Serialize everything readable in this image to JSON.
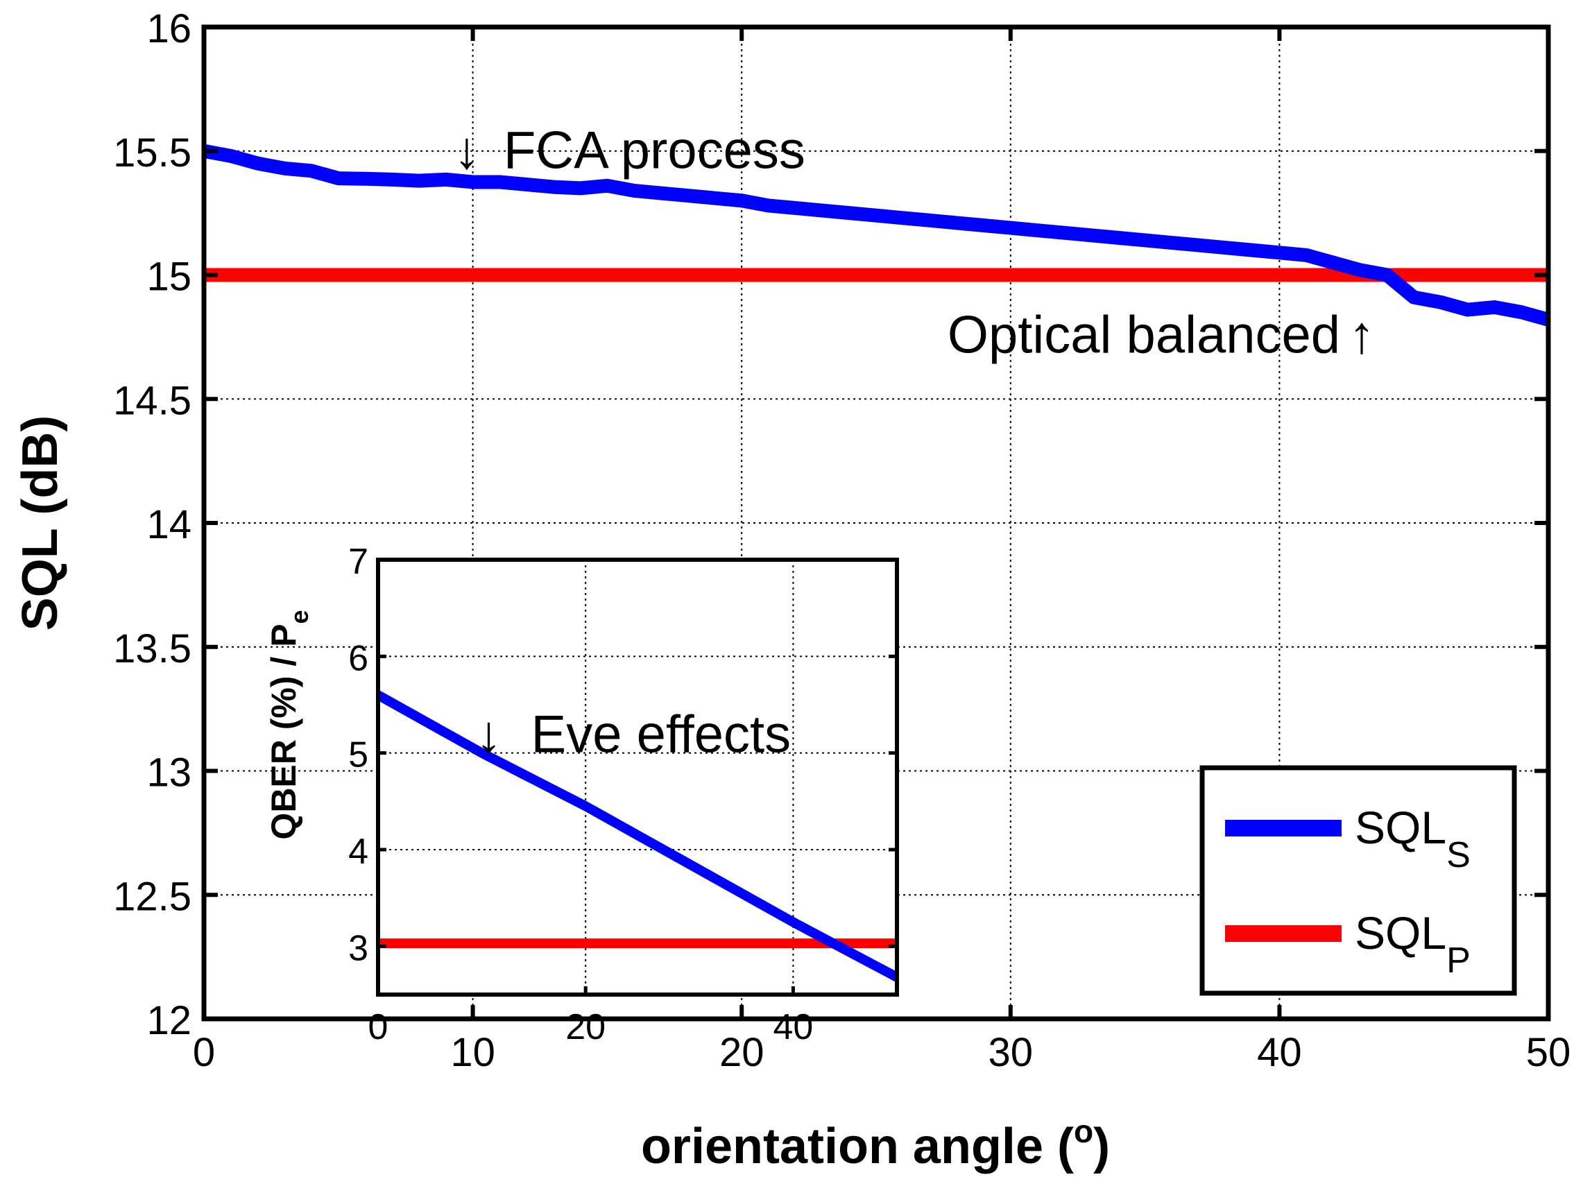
{
  "chart_data": [
    {
      "id": "main",
      "type": "line",
      "title": "",
      "xlabel": "orientation angle (",
      "xlabel_superscript": "o",
      "xlabel_suffix": ")",
      "ylabel": "SQL (dB)",
      "xlim": [
        0,
        50
      ],
      "ylim": [
        12,
        16
      ],
      "xticks": [
        0,
        10,
        20,
        30,
        40,
        50
      ],
      "xtick_labels": [
        "0",
        "10",
        "20",
        "30",
        "40",
        "50"
      ],
      "yticks": [
        12,
        12.5,
        13,
        13.5,
        14,
        14.5,
        15,
        15.5,
        16
      ],
      "ytick_labels": [
        "12",
        "12.5",
        "13",
        "13.5",
        "14",
        "14.5",
        "15",
        "15.5",
        "16"
      ],
      "grid": true,
      "legend_position": "bottom-right",
      "series": [
        {
          "name": "SQL",
          "subscript": "S",
          "color": "#0000ff",
          "x": [
            0,
            1,
            2,
            3,
            4,
            5,
            6,
            7,
            8,
            9,
            10,
            11,
            12,
            13,
            14,
            15,
            16,
            17,
            18,
            19,
            20,
            21,
            22,
            23,
            24,
            25,
            26,
            27,
            28,
            29,
            30,
            31,
            32,
            33,
            34,
            35,
            36,
            37,
            38,
            39,
            40,
            41,
            42,
            43,
            44,
            45,
            46,
            47,
            48,
            49,
            50
          ],
          "y": [
            15.5,
            15.48,
            15.45,
            15.43,
            15.42,
            15.39,
            15.388,
            15.385,
            15.38,
            15.385,
            15.375,
            15.375,
            15.365,
            15.355,
            15.35,
            15.36,
            15.34,
            15.33,
            15.32,
            15.31,
            15.3,
            15.28,
            15.27,
            15.26,
            15.25,
            15.24,
            15.23,
            15.22,
            15.21,
            15.2,
            15.19,
            15.18,
            15.17,
            15.16,
            15.15,
            15.14,
            15.13,
            15.12,
            15.11,
            15.1,
            15.09,
            15.08,
            15.05,
            15.02,
            15.0,
            14.91,
            14.89,
            14.86,
            14.87,
            14.85,
            14.82
          ]
        },
        {
          "name": "SQL",
          "subscript": "P",
          "color": "#ff0000",
          "x": [
            0,
            50
          ],
          "y": [
            15.0,
            15.0
          ]
        }
      ],
      "annotations": [
        {
          "text": "FCA process",
          "arrow": "↓",
          "arrow_side": "left",
          "x": 9.8,
          "y": 15.38
        },
        {
          "text": "Optical balanced",
          "arrow": "↑",
          "arrow_side": "right",
          "x": 43.5,
          "y": 15.0
        }
      ]
    },
    {
      "id": "inset",
      "type": "line",
      "title": "",
      "xlabel": "",
      "ylabel": "QBER (%) / P",
      "ylabel_subscript": "e",
      "xlim": [
        0,
        50
      ],
      "ylim": [
        2.5,
        7
      ],
      "xticks": [
        0,
        20,
        40
      ],
      "xtick_labels": [
        "0",
        "20",
        "40"
      ],
      "yticks": [
        3,
        4,
        5,
        6,
        7
      ],
      "ytick_labels": [
        "3",
        "4",
        "5",
        "6",
        "7"
      ],
      "grid": true,
      "series": [
        {
          "name": "QBER",
          "color": "#0000ff",
          "x": [
            0,
            10,
            20,
            30,
            40,
            50
          ],
          "y": [
            5.6,
            5.0,
            4.45,
            3.85,
            3.25,
            2.68
          ]
        },
        {
          "name": "Pe",
          "color": "#ff0000",
          "x": [
            0,
            50
          ],
          "y": [
            3.03,
            3.03
          ]
        }
      ],
      "annotations": [
        {
          "text": "Eve effects",
          "arrow": "↓",
          "arrow_side": "left",
          "x": 11,
          "y": 4.95
        }
      ]
    }
  ]
}
